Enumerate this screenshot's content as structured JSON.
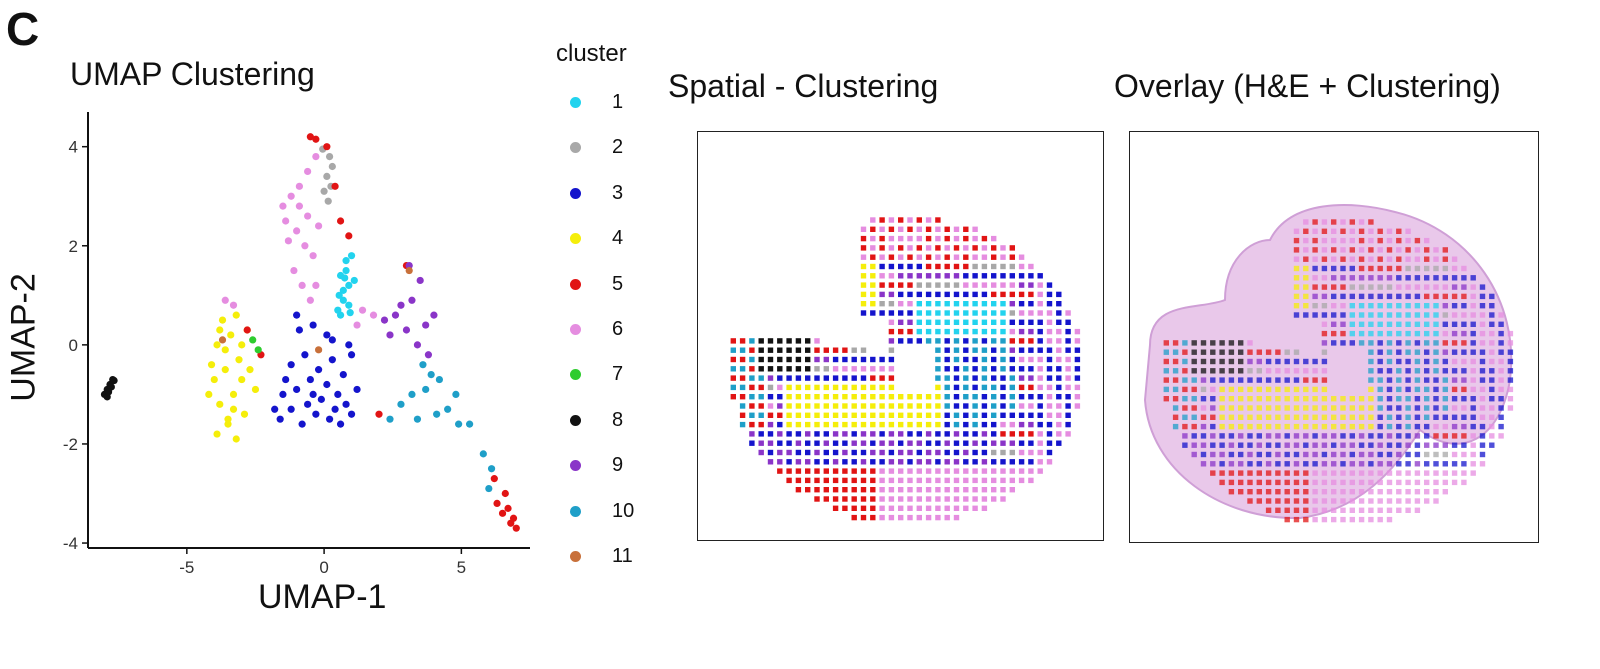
{
  "panel_label": "C",
  "legend": {
    "title": "cluster",
    "items": [
      {
        "label": "1",
        "color": "#22d3ee"
      },
      {
        "label": "2",
        "color": "#a8a8a8"
      },
      {
        "label": "3",
        "color": "#1414cc"
      },
      {
        "label": "4",
        "color": "#f5ee0a"
      },
      {
        "label": "5",
        "color": "#e11414"
      },
      {
        "label": "6",
        "color": "#e58de0"
      },
      {
        "label": "7",
        "color": "#2ecc2e"
      },
      {
        "label": "8",
        "color": "#111111"
      },
      {
        "label": "9",
        "color": "#8a35c8"
      },
      {
        "label": "10",
        "color": "#1f9fc8"
      },
      {
        "label": "11",
        "color": "#c8703a"
      }
    ]
  },
  "chart_data": [
    {
      "type": "scatter",
      "title": "UMAP Clustering",
      "xlabel": "UMAP-1",
      "ylabel": "UMAP-2",
      "xlim": [
        -8.6,
        7.5
      ],
      "ylim": [
        -4.1,
        4.7
      ],
      "xticks": [
        -5,
        0,
        5
      ],
      "yticks": [
        -4,
        -2,
        0,
        2,
        4
      ],
      "grid": false,
      "legend_position": "right",
      "clusters": [
        {
          "name": "1",
          "points": [
            [
              0.6,
              0.6
            ],
            [
              0.7,
              0.9
            ],
            [
              0.9,
              1.2
            ],
            [
              0.8,
              1.5
            ],
            [
              1.0,
              1.8
            ],
            [
              0.5,
              0.7
            ],
            [
              0.9,
              0.8
            ],
            [
              0.7,
              1.1
            ],
            [
              1.1,
              1.3
            ],
            [
              0.6,
              1.4
            ],
            [
              0.8,
              1.7
            ],
            [
              0.95,
              0.65
            ],
            [
              0.55,
              1.0
            ],
            [
              0.75,
              1.35
            ]
          ]
        },
        {
          "name": "2",
          "points": [
            [
              0.1,
              3.4
            ],
            [
              0.2,
              3.8
            ],
            [
              0.0,
              3.1
            ],
            [
              0.3,
              3.6
            ],
            [
              0.15,
              2.9
            ],
            [
              -0.05,
              3.95
            ],
            [
              0.25,
              3.2
            ]
          ]
        },
        {
          "name": "3",
          "points": [
            [
              -1.6,
              -1.5
            ],
            [
              -1.2,
              -1.3
            ],
            [
              -0.8,
              -1.6
            ],
            [
              -0.3,
              -1.4
            ],
            [
              0.2,
              -1.5
            ],
            [
              0.6,
              -1.6
            ],
            [
              1.0,
              -1.4
            ],
            [
              -1.5,
              -1.0
            ],
            [
              -1.0,
              -0.9
            ],
            [
              -0.4,
              -1.0
            ],
            [
              0.1,
              -0.8
            ],
            [
              0.5,
              -1.0
            ],
            [
              -1.2,
              -0.4
            ],
            [
              -0.7,
              -0.2
            ],
            [
              -0.2,
              -0.5
            ],
            [
              0.3,
              -0.3
            ],
            [
              0.7,
              -0.6
            ],
            [
              1.2,
              -0.9
            ],
            [
              -0.9,
              0.3
            ],
            [
              -0.4,
              0.4
            ],
            [
              0.1,
              0.2
            ],
            [
              -1.0,
              0.6
            ],
            [
              0.3,
              0.1
            ],
            [
              1.0,
              -0.2
            ],
            [
              -1.8,
              -1.3
            ],
            [
              -0.6,
              -1.2
            ],
            [
              0.8,
              -1.2
            ],
            [
              -1.4,
              -0.7
            ],
            [
              0.4,
              -1.3
            ],
            [
              -0.1,
              -1.1
            ],
            [
              0.9,
              0.0
            ],
            [
              -0.5,
              -0.7
            ]
          ]
        },
        {
          "name": "4",
          "points": [
            [
              -3.9,
              -1.8
            ],
            [
              -3.5,
              -1.5
            ],
            [
              -3.2,
              -1.9
            ],
            [
              -3.8,
              -1.2
            ],
            [
              -3.3,
              -1.0
            ],
            [
              -4.0,
              -0.7
            ],
            [
              -3.6,
              -0.5
            ],
            [
              -3.1,
              -0.3
            ],
            [
              -3.9,
              0.0
            ],
            [
              -3.4,
              0.2
            ],
            [
              -3.0,
              0.0
            ],
            [
              -3.7,
              0.5
            ],
            [
              -3.2,
              0.6
            ],
            [
              -2.7,
              -0.5
            ],
            [
              -2.5,
              -0.9
            ],
            [
              -2.9,
              -1.4
            ],
            [
              -4.2,
              -1.0
            ],
            [
              -3.5,
              -1.6
            ],
            [
              -2.8,
              0.3
            ],
            [
              -3.6,
              -0.1
            ],
            [
              -3.0,
              -0.7
            ],
            [
              -4.1,
              -0.4
            ],
            [
              -3.3,
              -1.3
            ],
            [
              -3.8,
              0.3
            ]
          ]
        },
        {
          "name": "5",
          "points": [
            [
              -0.5,
              4.2
            ],
            [
              -0.3,
              4.15
            ],
            [
              0.1,
              4.0
            ],
            [
              0.4,
              3.2
            ],
            [
              0.6,
              2.5
            ],
            [
              0.9,
              2.2
            ],
            [
              -2.3,
              -0.2
            ],
            [
              -2.8,
              0.3
            ],
            [
              2.0,
              -1.4
            ],
            [
              3.0,
              1.6
            ],
            [
              6.3,
              -3.2
            ],
            [
              6.5,
              -3.4
            ],
            [
              6.8,
              -3.6
            ],
            [
              7.0,
              -3.7
            ],
            [
              6.6,
              -3.0
            ],
            [
              6.9,
              -3.5
            ],
            [
              6.2,
              -2.7
            ],
            [
              6.7,
              -3.3
            ]
          ]
        },
        {
          "name": "6",
          "points": [
            [
              -1.5,
              2.8
            ],
            [
              -1.2,
              3.0
            ],
            [
              -0.9,
              3.2
            ],
            [
              -0.6,
              3.5
            ],
            [
              -0.3,
              3.8
            ],
            [
              -1.4,
              2.5
            ],
            [
              -1.0,
              2.3
            ],
            [
              -0.7,
              2.0
            ],
            [
              -0.4,
              1.8
            ],
            [
              -1.1,
              1.5
            ],
            [
              -0.8,
              1.2
            ],
            [
              -0.5,
              0.9
            ],
            [
              -0.9,
              2.8
            ],
            [
              -0.6,
              2.6
            ],
            [
              -0.2,
              2.4
            ],
            [
              -3.6,
              0.9
            ],
            [
              -3.3,
              0.8
            ],
            [
              1.4,
              0.7
            ],
            [
              1.8,
              0.6
            ],
            [
              1.2,
              0.4
            ],
            [
              -0.3,
              1.2
            ],
            [
              -1.3,
              2.1
            ]
          ]
        },
        {
          "name": "7",
          "points": [
            [
              -2.6,
              0.1
            ],
            [
              -2.4,
              -0.1
            ]
          ]
        },
        {
          "name": "8",
          "points": [
            [
              -8.0,
              -1.0
            ],
            [
              -7.9,
              -0.9
            ],
            [
              -7.8,
              -0.8
            ],
            [
              -7.7,
              -0.7
            ],
            [
              -7.9,
              -1.05
            ],
            [
              -7.75,
              -0.85
            ],
            [
              -7.85,
              -0.95
            ],
            [
              -7.65,
              -0.72
            ]
          ]
        },
        {
          "name": "9",
          "points": [
            [
              2.2,
              0.5
            ],
            [
              2.6,
              0.6
            ],
            [
              3.0,
              0.3
            ],
            [
              3.4,
              0.0
            ],
            [
              3.7,
              0.4
            ],
            [
              4.0,
              0.6
            ],
            [
              3.2,
              0.9
            ],
            [
              3.5,
              1.3
            ],
            [
              3.1,
              1.6
            ],
            [
              2.4,
              0.2
            ],
            [
              3.8,
              -0.2
            ],
            [
              2.8,
              0.8
            ]
          ]
        },
        {
          "name": "10",
          "points": [
            [
              2.4,
              -1.5
            ],
            [
              2.8,
              -1.2
            ],
            [
              3.2,
              -1.0
            ],
            [
              3.7,
              -0.9
            ],
            [
              4.1,
              -1.4
            ],
            [
              4.5,
              -1.3
            ],
            [
              4.9,
              -1.6
            ],
            [
              5.3,
              -1.6
            ],
            [
              3.6,
              -0.4
            ],
            [
              3.9,
              -0.6
            ],
            [
              4.2,
              -0.7
            ],
            [
              5.8,
              -2.2
            ],
            [
              6.1,
              -2.5
            ],
            [
              6.0,
              -2.9
            ],
            [
              4.8,
              -1.0
            ],
            [
              3.4,
              -1.5
            ]
          ]
        },
        {
          "name": "11",
          "points": [
            [
              -0.2,
              -0.1
            ],
            [
              3.1,
              1.5
            ],
            [
              -3.7,
              0.1
            ]
          ]
        }
      ]
    },
    {
      "type": "scatter",
      "title": "Spatial - Clustering",
      "grid": false,
      "regions": [
        {
          "cluster": "6",
          "description_free": true
        },
        {
          "cluster": "4"
        }
      ]
    },
    {
      "type": "scatter",
      "title": "Overlay (H&E + Clustering)",
      "grid": false
    }
  ]
}
